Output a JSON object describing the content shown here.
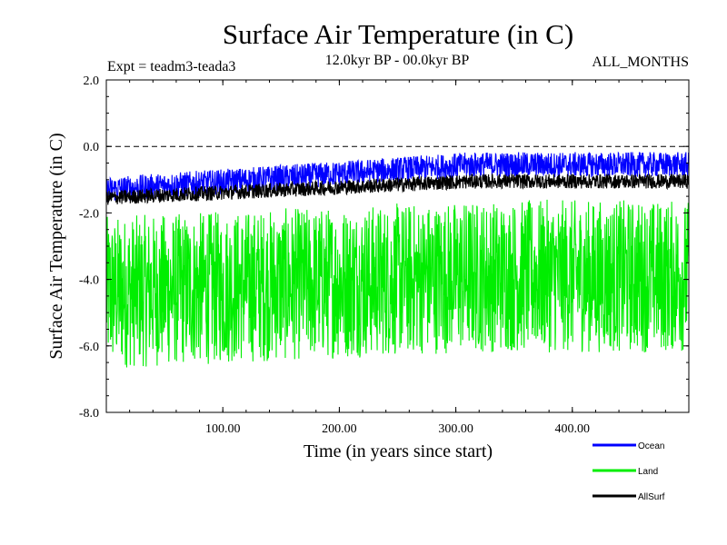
{
  "chart_data": {
    "type": "line",
    "title": "Surface Air Temperature (in C)",
    "subtitle": "12.0kyr BP - 00.0kyr BP",
    "experiment_label": "Expt = teadm3-teada3",
    "months_label": "ALL_MONTHS",
    "xlabel": "Time (in years since start)",
    "ylabel": "Surface Air Temperature (in C)",
    "xlim": [
      0,
      500
    ],
    "ylim": [
      -8.0,
      2.0
    ],
    "x_ticks": [
      100,
      200,
      300,
      400
    ],
    "x_tick_labels": [
      "100.00",
      "200.00",
      "300.00",
      "400.00"
    ],
    "y_ticks": [
      2.0,
      0.0,
      -2.0,
      -4.0,
      -6.0,
      -8.0
    ],
    "y_tick_labels": [
      "2.0",
      "0.0",
      "-2.0",
      "-4.0",
      "-6.0",
      "-8.0"
    ],
    "reference_line": 0.0,
    "series": [
      {
        "name": "Ocean",
        "color": "#0000ff",
        "mean_start": -1.3,
        "mean_end": -0.55,
        "amplitude": 0.38
      },
      {
        "name": "Land",
        "color": "#00ee00",
        "mean_start": -4.4,
        "mean_end": -3.9,
        "amplitude": 2.3
      },
      {
        "name": "AllSurf",
        "color": "#000000",
        "mean_start": -1.55,
        "mean_end": -1.05,
        "amplitude": 0.22
      }
    ]
  }
}
